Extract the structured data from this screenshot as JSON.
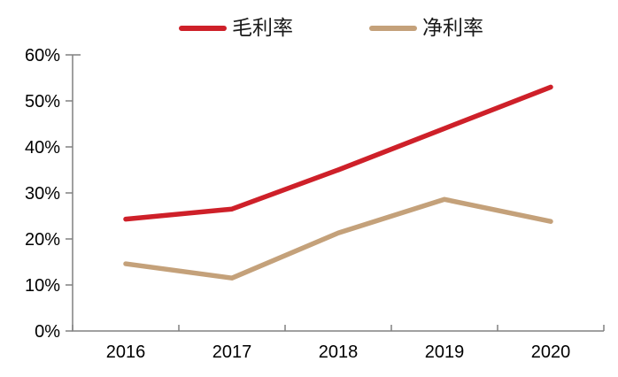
{
  "chart": {
    "background": "#ffffff",
    "axis_color": "#808080",
    "label_color": "#000000",
    "axis_label_font_px": 20
  },
  "chart_data": {
    "type": "line",
    "title": "",
    "xlabel": "",
    "ylabel": "",
    "categories": [
      "2016",
      "2017",
      "2018",
      "2019",
      "2020"
    ],
    "series": [
      {
        "name": "毛利率",
        "color": "#CE2029",
        "values": [
          24.3,
          26.5,
          35.0,
          44.0,
          53.0
        ]
      },
      {
        "name": "净利率",
        "color": "#C4A17A",
        "values": [
          14.6,
          11.5,
          21.3,
          28.6,
          23.8
        ]
      }
    ],
    "ylim": [
      0,
      60
    ],
    "ytick_step": 10,
    "ytick_labels": [
      "0%",
      "10%",
      "20%",
      "30%",
      "40%",
      "50%",
      "60%"
    ],
    "grid": false,
    "legend_position": "top"
  }
}
